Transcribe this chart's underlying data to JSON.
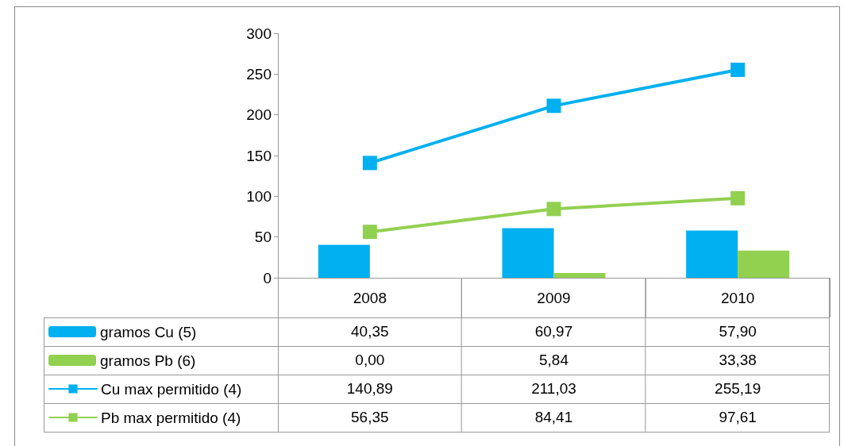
{
  "chart_data": {
    "type": "bar",
    "categories": [
      "2008",
      "2009",
      "2010"
    ],
    "series": [
      {
        "name": "gramos Cu (5)",
        "color": "#00b0f0",
        "values": [
          40.35,
          60.97,
          57.9
        ],
        "value_labels": [
          "40,35",
          "60,97",
          "57,90"
        ]
      },
      {
        "name": "gramos Pb (6)",
        "color": "#92d050",
        "values": [
          0.0,
          5.84,
          33.38
        ],
        "value_labels": [
          "0,00",
          "5,84",
          "33,38"
        ]
      },
      {
        "name": "Cu max permitido (4)",
        "type": "line",
        "color": "#00b0f0",
        "values": [
          140.89,
          211.03,
          255.19
        ],
        "value_labels": [
          "140,89",
          "211,03",
          "255,19"
        ]
      },
      {
        "name": "Pb max permitido (4)",
        "type": "line",
        "color": "#92d050",
        "values": [
          56.35,
          84.41,
          97.61
        ],
        "value_labels": [
          "56,35",
          "84,41",
          "97,61"
        ]
      }
    ],
    "ylim": [
      0,
      300
    ],
    "yticks": [
      0,
      50,
      100,
      150,
      200,
      250,
      300
    ],
    "grid": false,
    "legend": "bottom left",
    "marker": "square",
    "line_style": "solid"
  }
}
